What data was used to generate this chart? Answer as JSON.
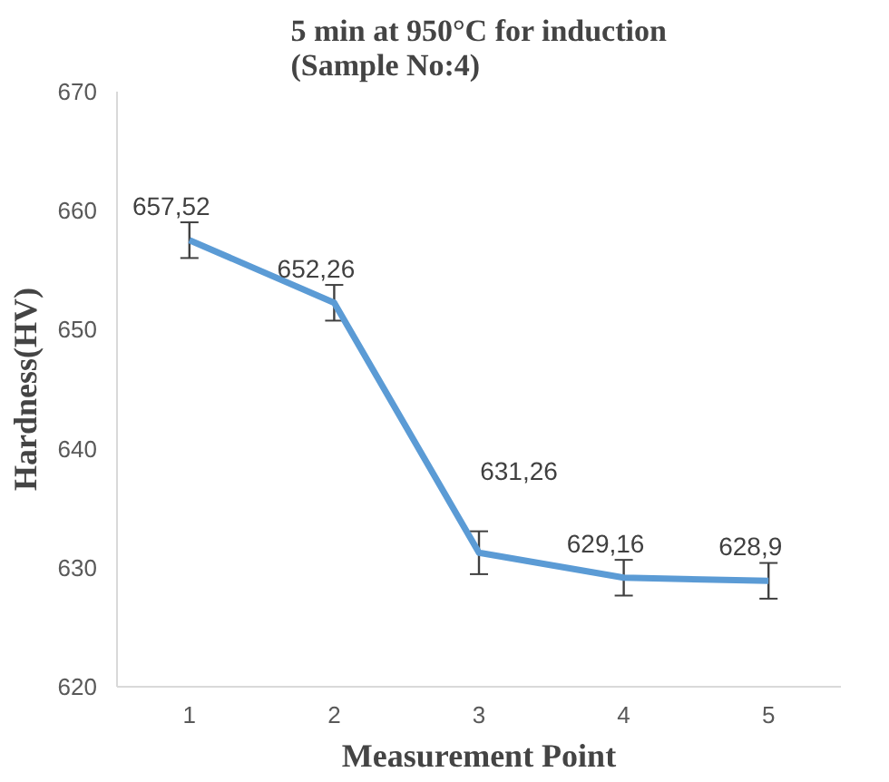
{
  "chart_data": {
    "type": "line",
    "title": "5 min at 950°C for induction\n(Sample No:4)",
    "xlabel": "Measurement Point",
    "ylabel": "Hardness(HV)",
    "categories": [
      "1",
      "2",
      "3",
      "4",
      "5"
    ],
    "series": [
      {
        "color": "#5b9bd5",
        "values": [
          657.52,
          652.26,
          631.26,
          629.16,
          628.9
        ],
        "value_labels": [
          "657,52",
          "652,26",
          "631,26",
          "629,16",
          "628,9"
        ],
        "errors": [
          1.5,
          1.5,
          1.8,
          1.5,
          1.5
        ]
      }
    ],
    "ylim": [
      620,
      670
    ],
    "yticks": [
      620,
      630,
      640,
      650,
      660,
      670
    ],
    "grid": false,
    "marker": "none",
    "line_style": "solid"
  }
}
